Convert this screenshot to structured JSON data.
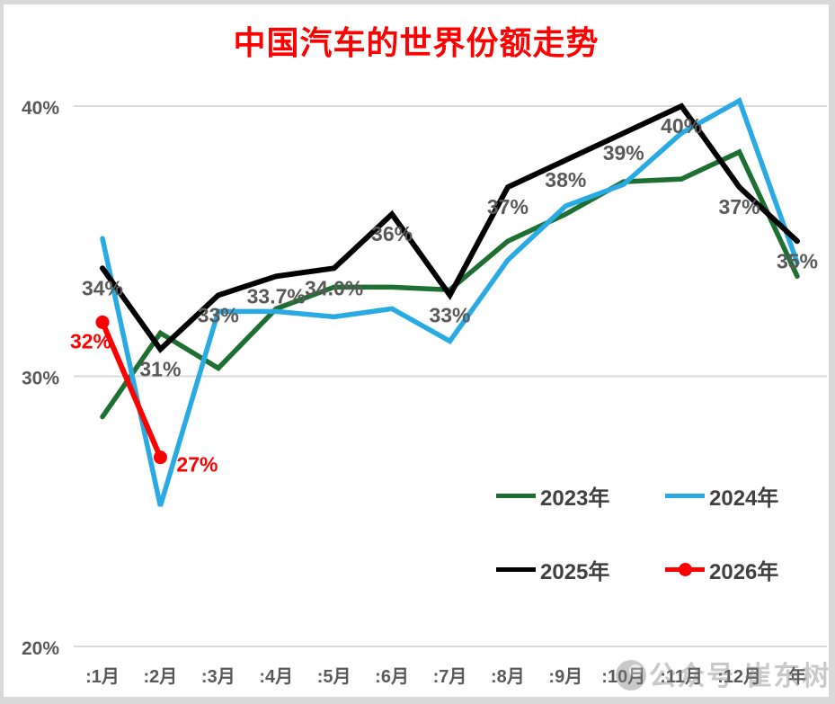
{
  "title_color": "#FF0000",
  "text_color": "#595959",
  "grid_color": "#D9D9D9",
  "watermark": {
    "text": "公众号 崔东树",
    "icon": "circle-logo",
    "color": "#808080"
  },
  "chart_data": {
    "type": "line",
    "title": "中国汽车的世界份额走势",
    "x_categories": [
      ":1月",
      ":2月",
      ":3月",
      ":4月",
      ":5月",
      ":6月",
      ":7月",
      ":8月",
      ":9月",
      ":10月",
      ":11月",
      ":12月",
      "年"
    ],
    "y_ticks": [
      "40%",
      "30%",
      "20%"
    ],
    "y_tick_values": [
      40,
      30,
      20
    ],
    "ylim": [
      20,
      41.5
    ],
    "grid": "horizontal",
    "legend_position": "inside-bottom-right",
    "series": [
      {
        "name": "2023年",
        "color": "#1E7032",
        "values": [
          28.5,
          31.6,
          30.3,
          32.5,
          33.3,
          33.3,
          33.2,
          35.0,
          36.0,
          37.2,
          37.3,
          38.3,
          33.7
        ]
      },
      {
        "name": "2024年",
        "color": "#29AAE3",
        "values": [
          35.1,
          25.2,
          32.4,
          32.4,
          32.2,
          32.5,
          31.3,
          34.3,
          36.3,
          37.1,
          39.0,
          40.2,
          34.2
        ]
      },
      {
        "name": "2025年",
        "color": "#000000",
        "values": [
          34,
          31,
          33,
          33.7,
          34,
          36,
          33,
          37,
          38,
          39,
          40,
          37,
          35
        ],
        "point_labels": [
          "34%",
          "31%",
          "33%",
          "33.7%",
          "34.0%",
          "36%",
          "33%",
          "37%",
          "38%",
          "39%",
          "40%",
          "37%",
          "35%"
        ]
      },
      {
        "name": "2026年",
        "color": "#FF0000",
        "marker": "circle",
        "values": [
          32,
          27
        ],
        "point_labels": [
          "32%",
          "27%"
        ]
      }
    ]
  }
}
